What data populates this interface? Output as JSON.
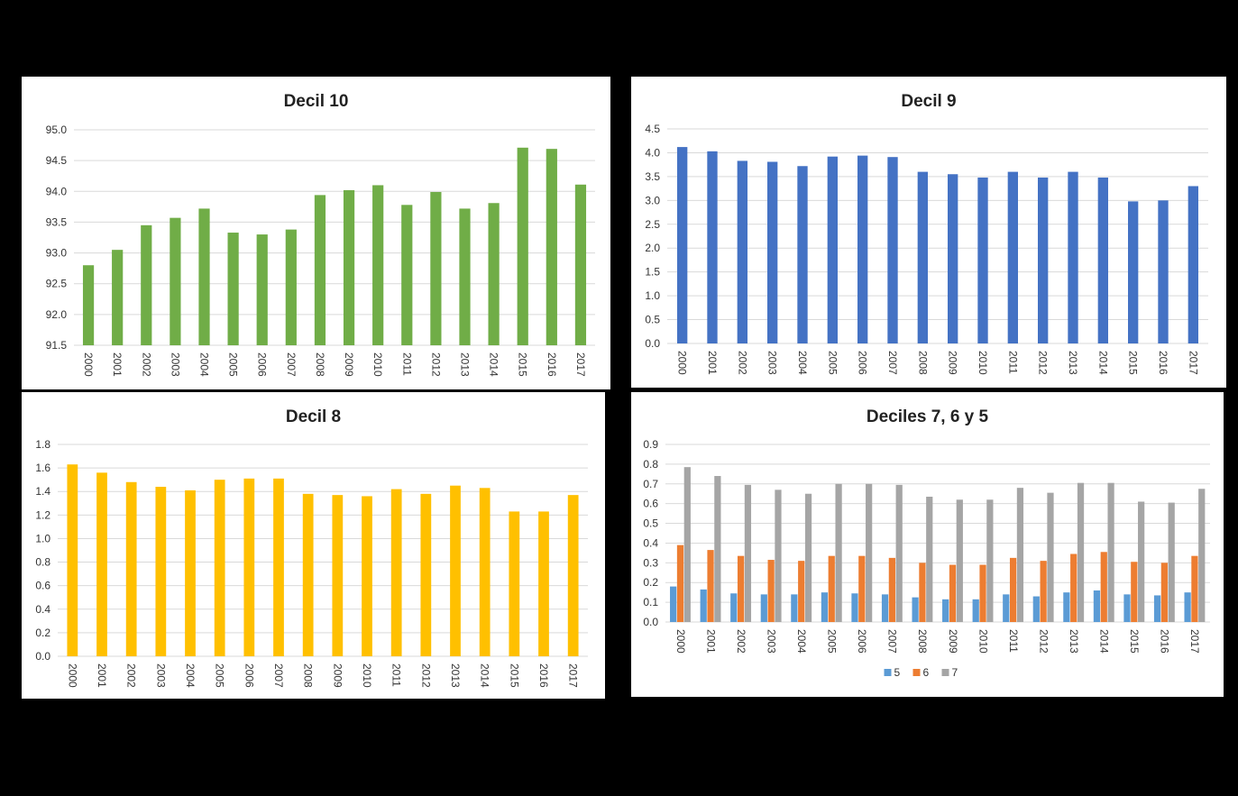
{
  "chart_data": [
    {
      "type": "bar",
      "title": "Decil 10",
      "categories": [
        "2000",
        "2001",
        "2002",
        "2003",
        "2004",
        "2005",
        "2006",
        "2007",
        "2008",
        "2009",
        "2010",
        "2011",
        "2012",
        "2013",
        "2014",
        "2015",
        "2016",
        "2017"
      ],
      "values": [
        92.8,
        93.05,
        93.45,
        93.57,
        93.72,
        93.33,
        93.3,
        93.38,
        93.94,
        94.02,
        94.1,
        93.78,
        93.99,
        93.72,
        93.81,
        94.71,
        94.69,
        94.11
      ],
      "ylim": [
        91.5,
        95.0
      ],
      "yticks": [
        "91.5",
        "92.0",
        "92.5",
        "93.0",
        "93.5",
        "94.0",
        "94.5",
        "95.0"
      ],
      "color": "#70AD47",
      "grid": true
    },
    {
      "type": "bar",
      "title": "Decil 9",
      "categories": [
        "2000",
        "2001",
        "2002",
        "2003",
        "2004",
        "2005",
        "2006",
        "2007",
        "2008",
        "2009",
        "2010",
        "2011",
        "2012",
        "2013",
        "2014",
        "2015",
        "2016",
        "2017"
      ],
      "values": [
        4.12,
        4.03,
        3.83,
        3.81,
        3.72,
        3.92,
        3.94,
        3.91,
        3.6,
        3.55,
        3.48,
        3.6,
        3.48,
        3.6,
        3.48,
        2.98,
        3.0,
        3.3
      ],
      "ylim": [
        0,
        4.5
      ],
      "yticks": [
        "0.0",
        "0.5",
        "1.0",
        "1.5",
        "2.0",
        "2.5",
        "3.0",
        "3.5",
        "4.0",
        "4.5"
      ],
      "color": "#4472C4",
      "grid": true
    },
    {
      "type": "bar",
      "title": "Decil 8",
      "categories": [
        "2000",
        "2001",
        "2002",
        "2003",
        "2004",
        "2005",
        "2006",
        "2007",
        "2008",
        "2009",
        "2010",
        "2011",
        "2012",
        "2013",
        "2014",
        "2015",
        "2016",
        "2017"
      ],
      "values": [
        1.63,
        1.56,
        1.48,
        1.44,
        1.41,
        1.5,
        1.51,
        1.51,
        1.38,
        1.37,
        1.36,
        1.42,
        1.38,
        1.45,
        1.43,
        1.23,
        1.23,
        1.37
      ],
      "ylim": [
        0,
        1.8
      ],
      "yticks": [
        "0.0",
        "0.2",
        "0.4",
        "0.6",
        "0.8",
        "1.0",
        "1.2",
        "1.4",
        "1.6",
        "1.8"
      ],
      "color": "#FFC000",
      "grid": true
    },
    {
      "type": "bar",
      "title": "Deciles 7, 6 y 5",
      "categories": [
        "2000",
        "2001",
        "2002",
        "2003",
        "2004",
        "2005",
        "2006",
        "2007",
        "2008",
        "2009",
        "2010",
        "2011",
        "2012",
        "2013",
        "2014",
        "2015",
        "2016",
        "2017"
      ],
      "series": [
        {
          "name": "5",
          "color": "#5B9BD5",
          "values": [
            0.18,
            0.165,
            0.145,
            0.14,
            0.14,
            0.15,
            0.145,
            0.14,
            0.125,
            0.115,
            0.115,
            0.14,
            0.13,
            0.15,
            0.16,
            0.14,
            0.135,
            0.15
          ]
        },
        {
          "name": "6",
          "color": "#ED7D31",
          "values": [
            0.39,
            0.365,
            0.335,
            0.315,
            0.31,
            0.335,
            0.335,
            0.325,
            0.3,
            0.29,
            0.29,
            0.325,
            0.31,
            0.345,
            0.355,
            0.305,
            0.3,
            0.335
          ]
        },
        {
          "name": "7",
          "color": "#A5A5A5",
          "values": [
            0.785,
            0.74,
            0.695,
            0.67,
            0.65,
            0.7,
            0.7,
            0.695,
            0.635,
            0.62,
            0.62,
            0.68,
            0.655,
            0.705,
            0.705,
            0.61,
            0.605,
            0.675
          ]
        }
      ],
      "ylim": [
        0,
        0.9
      ],
      "yticks": [
        "0.0",
        "0.1",
        "0.2",
        "0.3",
        "0.4",
        "0.5",
        "0.6",
        "0.7",
        "0.8",
        "0.9"
      ],
      "grid": true,
      "legend": "bottom"
    }
  ]
}
